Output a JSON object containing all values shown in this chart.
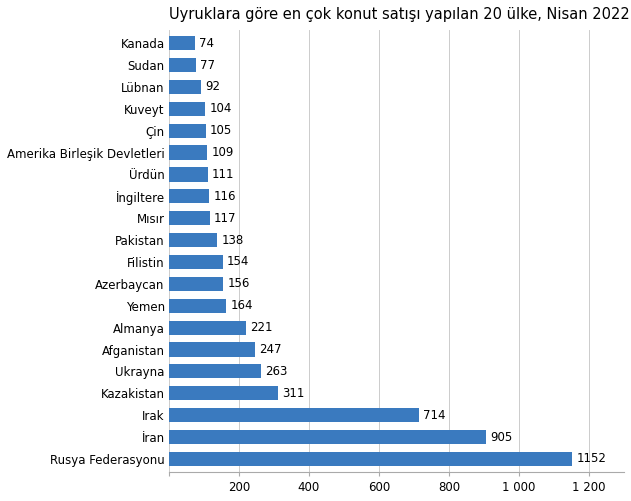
{
  "title": "Uyruklara göre en çok konut satışı yapılan 20 ülke, Nisan 2022",
  "categories": [
    "Rusya Federasyonu",
    "İran",
    "Irak",
    "Kazakistan",
    "Ukrayna",
    "Afganistan",
    "Almanya",
    "Yemen",
    "Azerbaycan",
    "Filistin",
    "Pakistan",
    "Mısır",
    "İngiltere",
    "Ürdün",
    "Amerika Birleşik Devletleri",
    "Çin",
    "Kuveyt",
    "Lübnan",
    "Sudan",
    "Kanada"
  ],
  "values": [
    1152,
    905,
    714,
    311,
    263,
    247,
    221,
    164,
    156,
    154,
    138,
    117,
    116,
    111,
    109,
    105,
    104,
    92,
    77,
    74
  ],
  "bar_color": "#3a7abf",
  "xlim": [
    0,
    1300
  ],
  "xticks": [
    0,
    200,
    400,
    600,
    800,
    1000,
    1200
  ],
  "xtick_labels": [
    "",
    "200",
    "400",
    "600",
    "800",
    "1 000",
    "1 200"
  ],
  "title_fontsize": 10.5,
  "label_fontsize": 8.5,
  "value_fontsize": 8.5,
  "background_color": "#ffffff"
}
